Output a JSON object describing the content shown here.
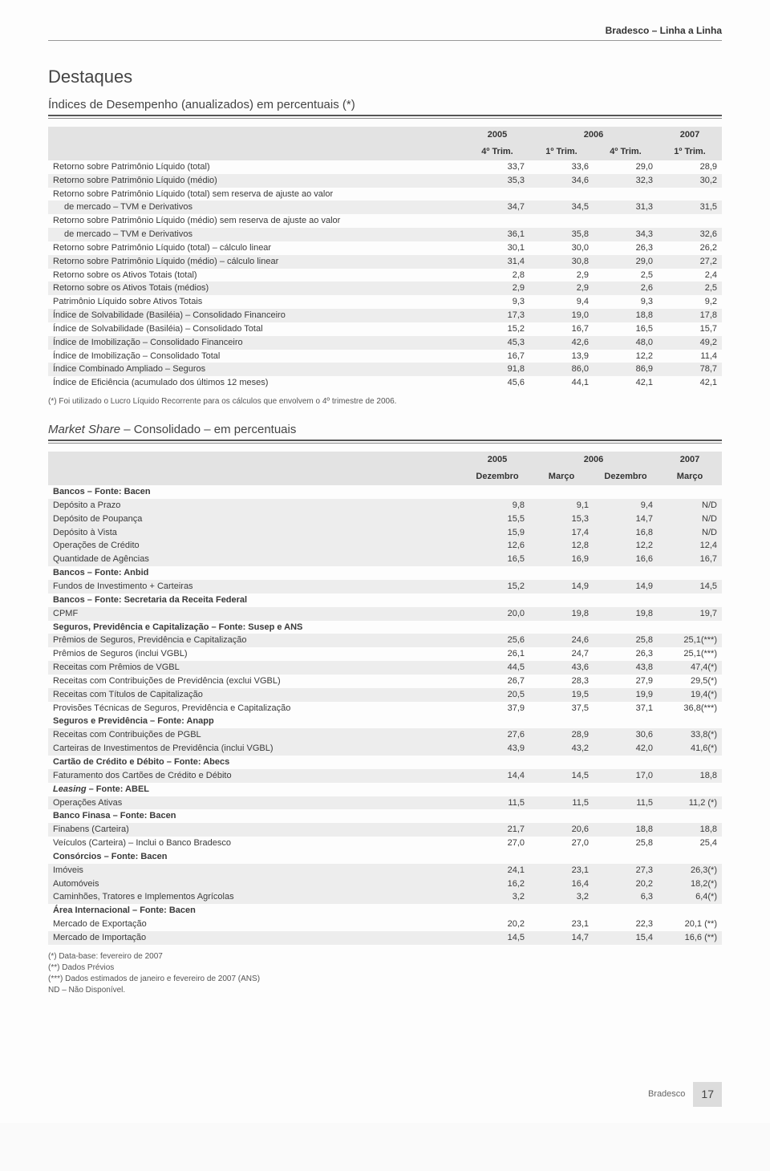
{
  "header": {
    "brand": "Bradesco – Linha a Linha"
  },
  "section_title": "Destaques",
  "table1": {
    "title": "Índices de Desempenho (anualizados) em percentuais (*)",
    "year_headers": [
      "2005",
      "2006",
      "2007"
    ],
    "sub_headers": [
      "4º Trim.",
      "1º Trim.",
      "4º Trim.",
      "1º Trim."
    ],
    "rows": [
      {
        "label": "Retorno sobre Patrimônio Líquido (total)",
        "v": [
          "33,7",
          "33,6",
          "29,0",
          "28,9"
        ]
      },
      {
        "label": "Retorno sobre Patrimônio Líquido (médio)",
        "v": [
          "35,3",
          "34,6",
          "32,3",
          "30,2"
        ]
      },
      {
        "label": "Retorno sobre Patrimônio Líquido (total) sem reserva de ajuste ao valor",
        "v": [
          "",
          "",
          "",
          ""
        ],
        "nohl": true
      },
      {
        "label": "de mercado – TVM e Derivativos",
        "v": [
          "34,7",
          "34,5",
          "31,3",
          "31,5"
        ],
        "indent": true,
        "nohl": true
      },
      {
        "label": "Retorno sobre Patrimônio Líquido (médio) sem reserva de ajuste ao valor",
        "v": [
          "",
          "",
          "",
          ""
        ],
        "nohl": true
      },
      {
        "label": "de mercado – TVM e Derivativos",
        "v": [
          "36,1",
          "35,8",
          "34,3",
          "32,6"
        ],
        "indent": true,
        "nohl": true
      },
      {
        "label": "Retorno sobre Patrimônio Líquido (total) – cálculo linear",
        "v": [
          "30,1",
          "30,0",
          "26,3",
          "26,2"
        ]
      },
      {
        "label": "Retorno sobre Patrimônio Líquido (médio) – cálculo linear",
        "v": [
          "31,4",
          "30,8",
          "29,0",
          "27,2"
        ]
      },
      {
        "label": "Retorno sobre os Ativos Totais (total)",
        "v": [
          "2,8",
          "2,9",
          "2,5",
          "2,4"
        ]
      },
      {
        "label": "Retorno sobre os Ativos Totais (médios)",
        "v": [
          "2,9",
          "2,9",
          "2,6",
          "2,5"
        ]
      },
      {
        "label": "Patrimônio Líquido sobre Ativos Totais",
        "v": [
          "9,3",
          "9,4",
          "9,3",
          "9,2"
        ]
      },
      {
        "label": "Índice de Solvabilidade (Basiléia) – Consolidado Financeiro",
        "v": [
          "17,3",
          "19,0",
          "18,8",
          "17,8"
        ]
      },
      {
        "label": "Índice de Solvabilidade (Basiléia) – Consolidado Total",
        "v": [
          "15,2",
          "16,7",
          "16,5",
          "15,7"
        ]
      },
      {
        "label": "Índice de Imobilização – Consolidado Financeiro",
        "v": [
          "45,3",
          "42,6",
          "48,0",
          "49,2"
        ]
      },
      {
        "label": "Índice de Imobilização – Consolidado Total",
        "v": [
          "16,7",
          "13,9",
          "12,2",
          "11,4"
        ]
      },
      {
        "label": "Índice Combinado Ampliado – Seguros",
        "v": [
          "91,8",
          "86,0",
          "86,9",
          "78,7"
        ]
      },
      {
        "label": "Índice de Eficiência (acumulado dos últimos 12 meses)",
        "v": [
          "45,6",
          "44,1",
          "42,1",
          "42,1"
        ]
      }
    ],
    "footnote": "(*) Foi utilizado o Lucro Líquido Recorrente para os cálculos que envolvem o 4º trimestre de 2006."
  },
  "table2": {
    "title_prefix": "Market Share",
    "title_suffix": " – Consolidado – em percentuais",
    "year_headers": [
      "2005",
      "2006",
      "2007"
    ],
    "sub_headers": [
      "Dezembro",
      "Março",
      "Dezembro",
      "Março"
    ],
    "rows": [
      {
        "label": "Bancos – Fonte: Bacen",
        "section": true
      },
      {
        "label": "Depósito a Prazo",
        "v": [
          "9,8",
          "9,1",
          "9,4",
          "N/D"
        ]
      },
      {
        "label": "Depósito de Poupança",
        "v": [
          "15,5",
          "15,3",
          "14,7",
          "N/D"
        ]
      },
      {
        "label": "Depósito à Vista",
        "v": [
          "15,9",
          "17,4",
          "16,8",
          "N/D"
        ]
      },
      {
        "label": "Operações de Crédito",
        "v": [
          "12,6",
          "12,8",
          "12,2",
          "12,4"
        ]
      },
      {
        "label": "Quantidade de Agências",
        "v": [
          "16,5",
          "16,9",
          "16,6",
          "16,7"
        ]
      },
      {
        "label": "Bancos – Fonte: Anbid",
        "section": true
      },
      {
        "label": "Fundos de Investimento + Carteiras",
        "v": [
          "15,2",
          "14,9",
          "14,9",
          "14,5"
        ]
      },
      {
        "label": "Bancos – Fonte: Secretaria da Receita Federal",
        "section": true
      },
      {
        "label": "CPMF",
        "v": [
          "20,0",
          "19,8",
          "19,8",
          "19,7"
        ]
      },
      {
        "label": "Seguros, Previdência e Capitalização – Fonte: Susep e ANS",
        "section": true
      },
      {
        "label": "Prêmios de Seguros, Previdência e Capitalização",
        "v": [
          "25,6",
          "24,6",
          "25,8",
          "25,1(***)"
        ]
      },
      {
        "label": "Prêmios de Seguros (inclui VGBL)",
        "v": [
          "26,1",
          "24,7",
          "26,3",
          "25,1(***)"
        ]
      },
      {
        "label": "Receitas com Prêmios de VGBL",
        "v": [
          "44,5",
          "43,6",
          "43,8",
          "47,4(*)"
        ]
      },
      {
        "label": "Receitas com Contribuições de Previdência (exclui VGBL)",
        "v": [
          "26,7",
          "28,3",
          "27,9",
          "29,5(*)"
        ]
      },
      {
        "label": "Receitas com Títulos de Capitalização",
        "v": [
          "20,5",
          "19,5",
          "19,9",
          "19,4(*)"
        ]
      },
      {
        "label": "Provisões Técnicas de Seguros, Previdência e Capitalização",
        "v": [
          "37,9",
          "37,5",
          "37,1",
          "36,8(***)"
        ]
      },
      {
        "label": "Seguros e Previdência – Fonte: Anapp",
        "section": true
      },
      {
        "label": "Receitas com Contribuições de PGBL",
        "v": [
          "27,6",
          "28,9",
          "30,6",
          "33,8(*)"
        ]
      },
      {
        "label": "Carteiras de Investimentos de Previdência (inclui VGBL)",
        "v": [
          "43,9",
          "43,2",
          "42,0",
          "41,6(*)"
        ]
      },
      {
        "label": "Cartão de Crédito e Débito – Fonte: Abecs",
        "section": true
      },
      {
        "label": "Faturamento dos Cartões de Crédito e Débito",
        "v": [
          "14,4",
          "14,5",
          "17,0",
          "18,8"
        ]
      },
      {
        "label": "Leasing – Fonte: ABEL",
        "section": true,
        "ital_first": true
      },
      {
        "label": "Operações Ativas",
        "v": [
          "11,5",
          "11,5",
          "11,5",
          "11,2 (*)"
        ]
      },
      {
        "label": "Banco Finasa – Fonte: Bacen",
        "section": true
      },
      {
        "label": "Finabens (Carteira)",
        "v": [
          "21,7",
          "20,6",
          "18,8",
          "18,8"
        ]
      },
      {
        "label": "Veículos (Carteira) – Inclui o Banco Bradesco",
        "v": [
          "27,0",
          "27,0",
          "25,8",
          "25,4"
        ]
      },
      {
        "label": "Consórcios – Fonte: Bacen",
        "section": true
      },
      {
        "label": "Imóveis",
        "v": [
          "24,1",
          "23,1",
          "27,3",
          "26,3(*)"
        ]
      },
      {
        "label": "Automóveis",
        "v": [
          "16,2",
          "16,4",
          "20,2",
          "18,2(*)"
        ]
      },
      {
        "label": "Caminhões, Tratores e Implementos Agrícolas",
        "v": [
          "3,2",
          "3,2",
          "6,3",
          "6,4(*)"
        ]
      },
      {
        "label": "Área Internacional – Fonte: Bacen",
        "section": true
      },
      {
        "label": "Mercado de Exportação",
        "v": [
          "20,2",
          "23,1",
          "22,3",
          "20,1 (**)"
        ]
      },
      {
        "label": "Mercado de Importação",
        "v": [
          "14,5",
          "14,7",
          "15,4",
          "16,6 (**)"
        ]
      }
    ],
    "footnotes": [
      "(*) Data-base: fevereiro de 2007",
      "(**) Dados Prévios",
      "(***) Dados estimados de janeiro e fevereiro de 2007 (ANS)",
      "ND – Não Disponível."
    ]
  },
  "footer": {
    "brand": "Bradesco",
    "page": "17"
  }
}
